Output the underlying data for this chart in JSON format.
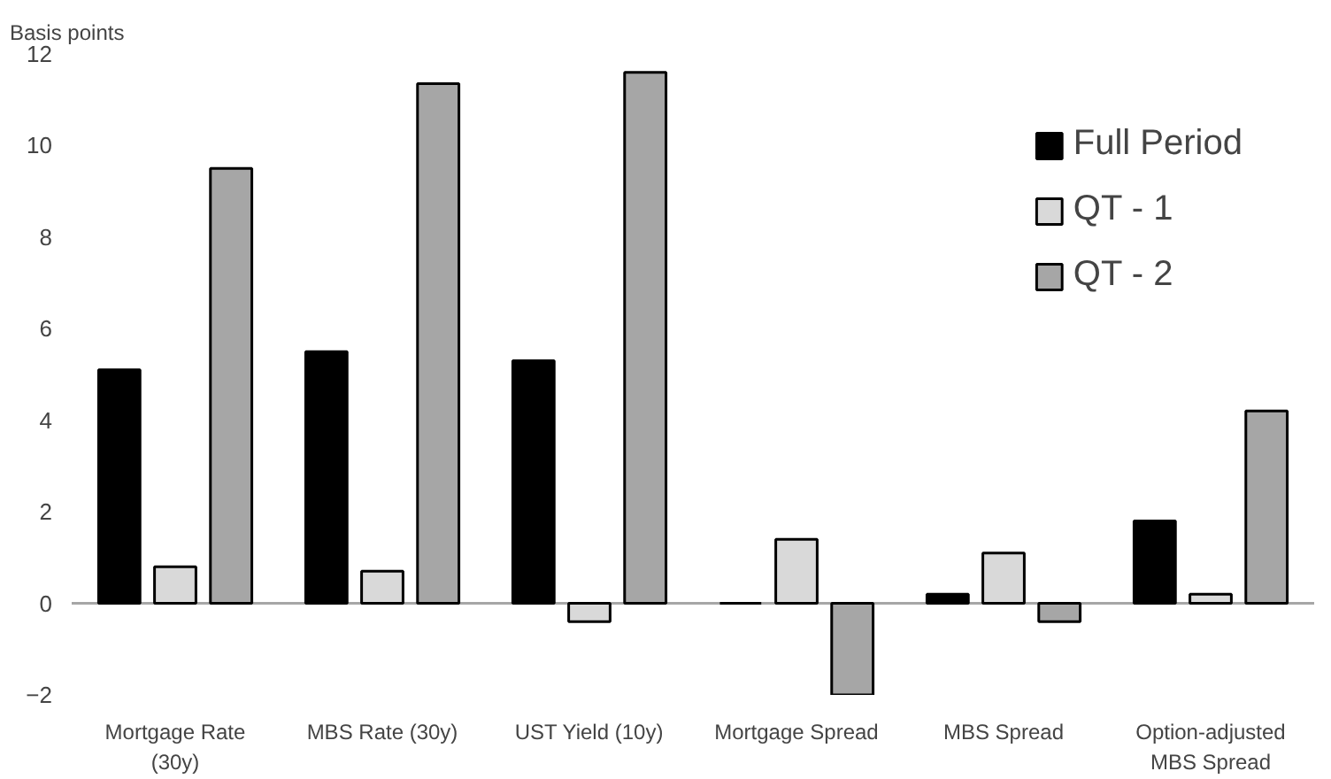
{
  "chart_data": {
    "type": "bar",
    "ylabel": "Basis points",
    "categories": [
      "Mortgage Rate\n(30y)",
      "MBS Rate (30y)",
      "UST Yield (10y)",
      "Mortgage Spread",
      "MBS Spread",
      "Option-adjusted\nMBS Spread"
    ],
    "series": [
      {
        "name": "Full Period",
        "color": "#000000",
        "values": [
          5.1,
          5.5,
          5.3,
          0,
          0.2,
          1.8
        ]
      },
      {
        "name": "QT - 1",
        "color": "#d9d9d9",
        "values": [
          0.8,
          0.7,
          -0.4,
          1.4,
          1.1,
          0.2
        ]
      },
      {
        "name": "QT - 2",
        "color": "#a6a6a6",
        "values": [
          9.5,
          11.35,
          11.6,
          -2.0,
          -0.4,
          4.2
        ]
      }
    ],
    "ref_lines": [
      {
        "axis": "y",
        "value": 0,
        "color": "#a6a6a6"
      }
    ],
    "ylim": [
      -2,
      12
    ],
    "yticks": [
      -2,
      0,
      2,
      4,
      6,
      8,
      10,
      12
    ],
    "grid": false,
    "legend": "top right"
  }
}
